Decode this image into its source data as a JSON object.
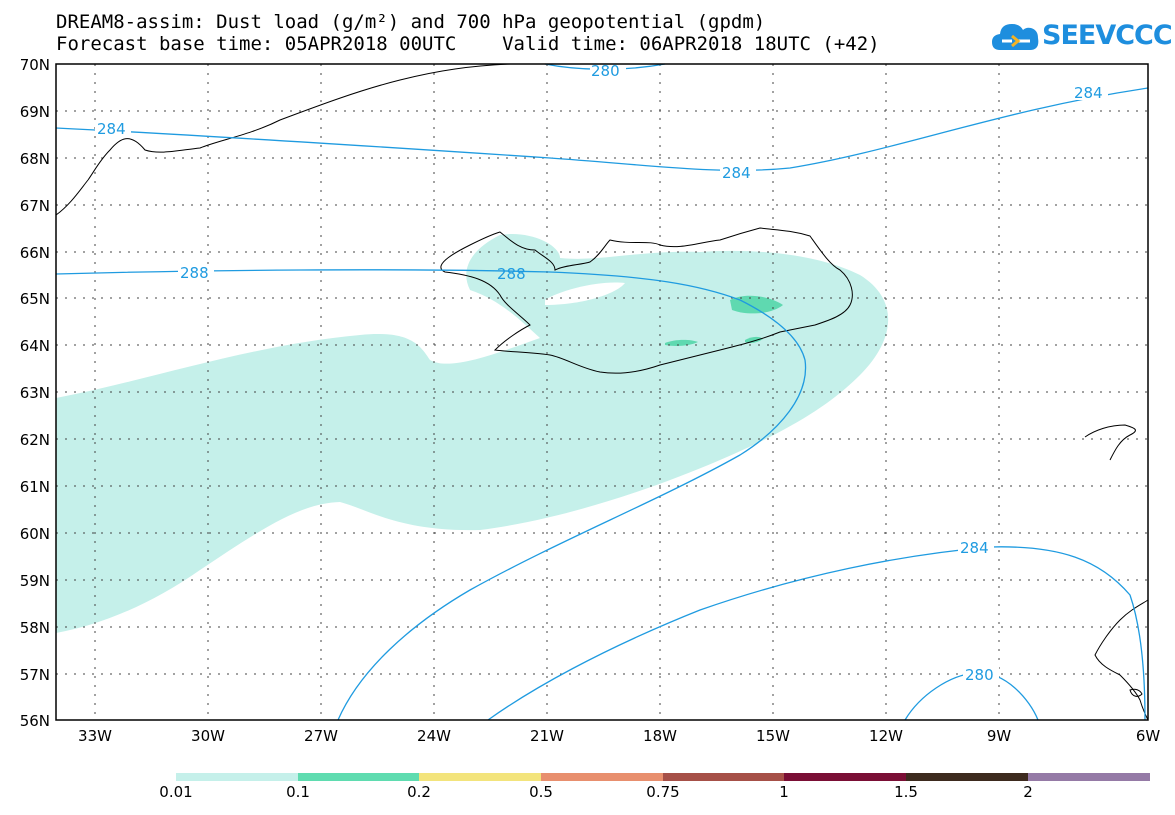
{
  "header": {
    "title_line1": "DREAM8-assim: Dust load (g/m²) and 700 hPa geopotential (gpdm)",
    "title_line2": "Forecast base time: 05APR2018 00UTC    Valid time: 06APR2018 18UTC (+42)"
  },
  "logo": {
    "text": "SEEVCCC",
    "icon": "cloud-logo-icon"
  },
  "map": {
    "lat_labels": [
      "70N",
      "69N",
      "68N",
      "67N",
      "66N",
      "65N",
      "64N",
      "63N",
      "62N",
      "61N",
      "60N",
      "59N",
      "58N",
      "57N",
      "56N"
    ],
    "lon_labels": [
      "33W",
      "30W",
      "27W",
      "24W",
      "21W",
      "18W",
      "15W",
      "12W",
      "9W",
      "6W"
    ],
    "contour_labels": [
      "280",
      "284",
      "288",
      "284",
      "284",
      "280"
    ],
    "colors": {
      "dust_light": "#c5f0ea",
      "dust_medium": "#5fd9b0",
      "contour": "#1f9be0",
      "coastline": "#000000"
    }
  },
  "colorbar": {
    "labels": [
      "0.01",
      "0.1",
      "0.2",
      "0.5",
      "0.75",
      "1",
      "1.5",
      "2"
    ],
    "colors": [
      "#c5f0ea",
      "#5fdcb0",
      "#f3e47c",
      "#e88f6e",
      "#a65048",
      "#7a0e35",
      "#3d2a1e",
      "#957aa6"
    ]
  }
}
